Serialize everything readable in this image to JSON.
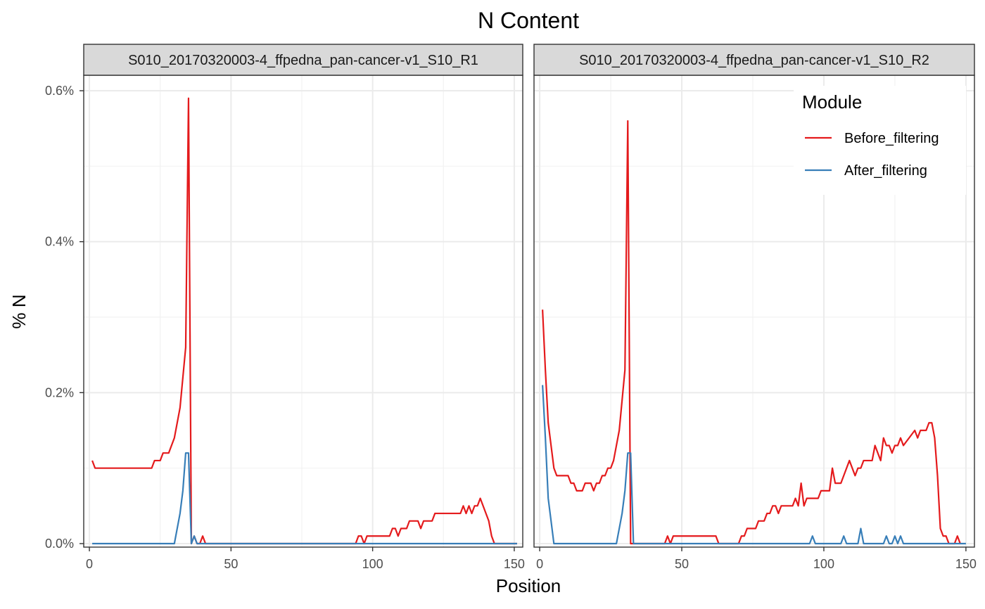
{
  "chart_data": {
    "type": "line",
    "title": "N Content",
    "xlabel": "Position",
    "ylabel": "% N",
    "xlim": [
      -2,
      153
    ],
    "ylim": [
      -0.006,
      0.6
    ],
    "x_ticks": [
      0,
      50,
      100,
      150
    ],
    "y_ticks": [
      0.0,
      0.2,
      0.4,
      0.6
    ],
    "y_tick_labels": [
      "0.0%",
      "0.2%",
      "0.4%",
      "0.6%"
    ],
    "grid": true,
    "legend": {
      "title": "Module",
      "position": "top-right",
      "entries": [
        {
          "name": "Before_filtering",
          "color": "#e41a1c"
        },
        {
          "name": "After_filtering",
          "color": "#377eb8"
        }
      ]
    },
    "panels": [
      {
        "strip": "S010_20170320003-4_ffpedna_pan-cancer-v1_S10_R1",
        "series": [
          {
            "name": "Before_filtering",
            "color": "#e41a1c",
            "points": [
              [
                1,
                0.11
              ],
              [
                2,
                0.1
              ],
              [
                10,
                0.1
              ],
              [
                20,
                0.1
              ],
              [
                22,
                0.1
              ],
              [
                23,
                0.11
              ],
              [
                25,
                0.11
              ],
              [
                26,
                0.12
              ],
              [
                28,
                0.12
              ],
              [
                30,
                0.14
              ],
              [
                32,
                0.18
              ],
              [
                34,
                0.26
              ],
              [
                35,
                0.59
              ],
              [
                36,
                0.0
              ],
              [
                37,
                0.01
              ],
              [
                38,
                0.0
              ],
              [
                39,
                0.0
              ],
              [
                40,
                0.01
              ],
              [
                41,
                0.0
              ],
              [
                50,
                0.0
              ],
              [
                90,
                0.0
              ],
              [
                94,
                0.0
              ],
              [
                95,
                0.01
              ],
              [
                96,
                0.01
              ],
              [
                97,
                0.0
              ],
              [
                98,
                0.01
              ],
              [
                106,
                0.01
              ],
              [
                107,
                0.02
              ],
              [
                108,
                0.02
              ],
              [
                109,
                0.01
              ],
              [
                110,
                0.02
              ],
              [
                112,
                0.02
              ],
              [
                113,
                0.03
              ],
              [
                116,
                0.03
              ],
              [
                117,
                0.02
              ],
              [
                118,
                0.03
              ],
              [
                121,
                0.03
              ],
              [
                122,
                0.04
              ],
              [
                131,
                0.04
              ],
              [
                132,
                0.05
              ],
              [
                133,
                0.04
              ],
              [
                134,
                0.05
              ],
              [
                135,
                0.04
              ],
              [
                136,
                0.05
              ],
              [
                137,
                0.05
              ],
              [
                138,
                0.06
              ],
              [
                139,
                0.05
              ],
              [
                141,
                0.03
              ],
              [
                142,
                0.01
              ],
              [
                143,
                0.0
              ],
              [
                151,
                0.0
              ]
            ]
          },
          {
            "name": "After_filtering",
            "color": "#377eb8",
            "points": [
              [
                1,
                0.0
              ],
              [
                30,
                0.0
              ],
              [
                31,
                0.02
              ],
              [
                32,
                0.04
              ],
              [
                33,
                0.07
              ],
              [
                34,
                0.12
              ],
              [
                35,
                0.12
              ],
              [
                36,
                0.0
              ],
              [
                37,
                0.01
              ],
              [
                38,
                0.0
              ],
              [
                151,
                0.0
              ]
            ]
          }
        ]
      },
      {
        "strip": "S010_20170320003-4_ffpedna_pan-cancer-v1_S10_R2",
        "series": [
          {
            "name": "Before_filtering",
            "color": "#e41a1c",
            "points": [
              [
                1,
                0.31
              ],
              [
                2,
                0.23
              ],
              [
                3,
                0.16
              ],
              [
                4,
                0.13
              ],
              [
                5,
                0.1
              ],
              [
                6,
                0.09
              ],
              [
                10,
                0.09
              ],
              [
                11,
                0.08
              ],
              [
                12,
                0.08
              ],
              [
                13,
                0.07
              ],
              [
                15,
                0.07
              ],
              [
                16,
                0.08
              ],
              [
                18,
                0.08
              ],
              [
                19,
                0.07
              ],
              [
                20,
                0.08
              ],
              [
                21,
                0.08
              ],
              [
                22,
                0.09
              ],
              [
                23,
                0.09
              ],
              [
                24,
                0.1
              ],
              [
                25,
                0.1
              ],
              [
                26,
                0.11
              ],
              [
                27,
                0.13
              ],
              [
                28,
                0.15
              ],
              [
                30,
                0.23
              ],
              [
                31,
                0.56
              ],
              [
                32,
                0.0
              ],
              [
                40,
                0.0
              ],
              [
                44,
                0.0
              ],
              [
                45,
                0.01
              ],
              [
                46,
                0.0
              ],
              [
                47,
                0.01
              ],
              [
                62,
                0.01
              ],
              [
                63,
                0.0
              ],
              [
                70,
                0.0
              ],
              [
                71,
                0.01
              ],
              [
                72,
                0.01
              ],
              [
                73,
                0.02
              ],
              [
                76,
                0.02
              ],
              [
                77,
                0.03
              ],
              [
                79,
                0.03
              ],
              [
                80,
                0.04
              ],
              [
                81,
                0.04
              ],
              [
                82,
                0.05
              ],
              [
                83,
                0.05
              ],
              [
                84,
                0.04
              ],
              [
                85,
                0.05
              ],
              [
                89,
                0.05
              ],
              [
                90,
                0.06
              ],
              [
                91,
                0.05
              ],
              [
                92,
                0.08
              ],
              [
                93,
                0.05
              ],
              [
                94,
                0.06
              ],
              [
                98,
                0.06
              ],
              [
                99,
                0.07
              ],
              [
                102,
                0.07
              ],
              [
                103,
                0.1
              ],
              [
                104,
                0.08
              ],
              [
                106,
                0.08
              ],
              [
                108,
                0.1
              ],
              [
                109,
                0.11
              ],
              [
                111,
                0.09
              ],
              [
                112,
                0.1
              ],
              [
                113,
                0.1
              ],
              [
                114,
                0.11
              ],
              [
                117,
                0.11
              ],
              [
                118,
                0.13
              ],
              [
                119,
                0.12
              ],
              [
                120,
                0.11
              ],
              [
                121,
                0.14
              ],
              [
                122,
                0.13
              ],
              [
                123,
                0.13
              ],
              [
                124,
                0.12
              ],
              [
                125,
                0.13
              ],
              [
                126,
                0.13
              ],
              [
                127,
                0.14
              ],
              [
                128,
                0.13
              ],
              [
                130,
                0.14
              ],
              [
                132,
                0.15
              ],
              [
                133,
                0.14
              ],
              [
                134,
                0.15
              ],
              [
                136,
                0.15
              ],
              [
                137,
                0.16
              ],
              [
                138,
                0.16
              ],
              [
                139,
                0.14
              ],
              [
                140,
                0.09
              ],
              [
                141,
                0.02
              ],
              [
                142,
                0.01
              ],
              [
                143,
                0.01
              ],
              [
                144,
                0.0
              ],
              [
                146,
                0.0
              ],
              [
                147,
                0.01
              ],
              [
                148,
                0.0
              ]
            ]
          },
          {
            "name": "After_filtering",
            "color": "#377eb8",
            "points": [
              [
                1,
                0.21
              ],
              [
                2,
                0.14
              ],
              [
                3,
                0.06
              ],
              [
                4,
                0.03
              ],
              [
                5,
                0.0
              ],
              [
                27,
                0.0
              ],
              [
                28,
                0.02
              ],
              [
                29,
                0.04
              ],
              [
                30,
                0.07
              ],
              [
                31,
                0.12
              ],
              [
                32,
                0.12
              ],
              [
                33,
                0.0
              ],
              [
                95,
                0.0
              ],
              [
                96,
                0.01
              ],
              [
                97,
                0.0
              ],
              [
                106,
                0.0
              ],
              [
                107,
                0.01
              ],
              [
                108,
                0.0
              ],
              [
                112,
                0.0
              ],
              [
                113,
                0.02
              ],
              [
                114,
                0.0
              ],
              [
                121,
                0.0
              ],
              [
                122,
                0.01
              ],
              [
                123,
                0.0
              ],
              [
                124,
                0.0
              ],
              [
                125,
                0.01
              ],
              [
                126,
                0.0
              ],
              [
                127,
                0.01
              ],
              [
                128,
                0.0
              ],
              [
                150,
                0.0
              ]
            ]
          }
        ]
      }
    ]
  }
}
